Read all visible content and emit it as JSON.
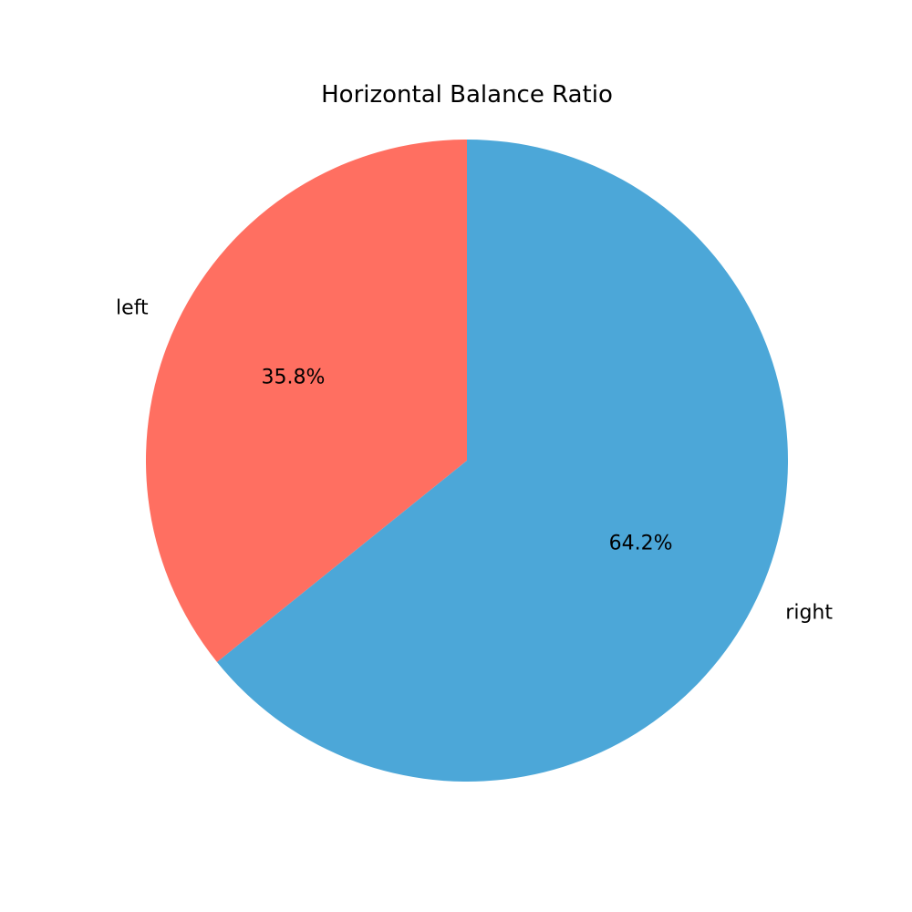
{
  "chart_data": {
    "type": "pie",
    "title": "Horizontal Balance Ratio",
    "slices": [
      {
        "label": "left",
        "value": 35.8,
        "pct_label": "35.8%",
        "color": "#ff6f61"
      },
      {
        "label": "right",
        "value": 64.2,
        "pct_label": "64.2%",
        "color": "#4ca7d8"
      }
    ],
    "start_angle_deg": 90,
    "direction": "counterclockwise"
  }
}
